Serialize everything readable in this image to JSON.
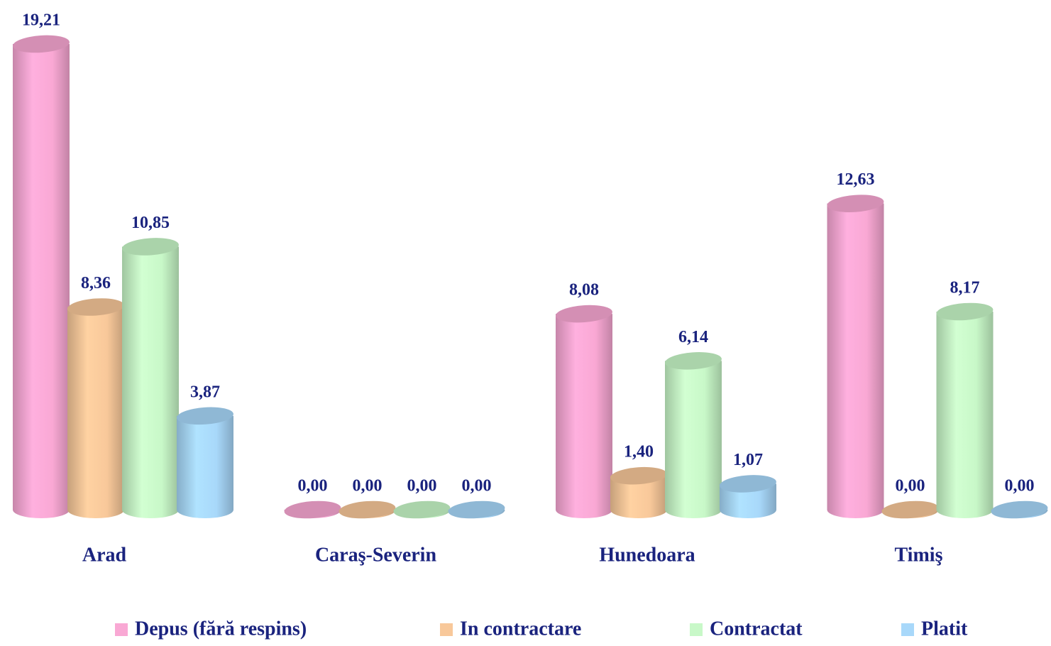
{
  "chart_data": {
    "type": "bar",
    "categories": [
      "Arad",
      "Caraş-Severin",
      "Hunedoara",
      "Timiş"
    ],
    "series": [
      {
        "name": "Depus (fără respins)",
        "color": "#f9a8d4",
        "values": [
          19.21,
          0,
          8.08,
          12.63
        ],
        "value_labels": [
          "19,21",
          "0,00",
          "8,08",
          "12,63"
        ]
      },
      {
        "name": "In contractare",
        "color": "#f8c89a",
        "values": [
          8.36,
          0,
          1.4,
          0
        ],
        "value_labels": [
          "8,36",
          "0,00",
          "1,40",
          "0,00"
        ]
      },
      {
        "name": "Contractat",
        "color": "#c8f8c8",
        "values": [
          10.85,
          0,
          6.14,
          8.17
        ],
        "value_labels": [
          "10,85",
          "0,00",
          "6,14",
          "8,17"
        ]
      },
      {
        "name": "Platit",
        "color": "#a8d8fa",
        "values": [
          3.87,
          0,
          1.07,
          0
        ],
        "value_labels": [
          "3,87",
          "0,00",
          "1,07",
          "0,00"
        ]
      }
    ],
    "legend": "bottom"
  }
}
